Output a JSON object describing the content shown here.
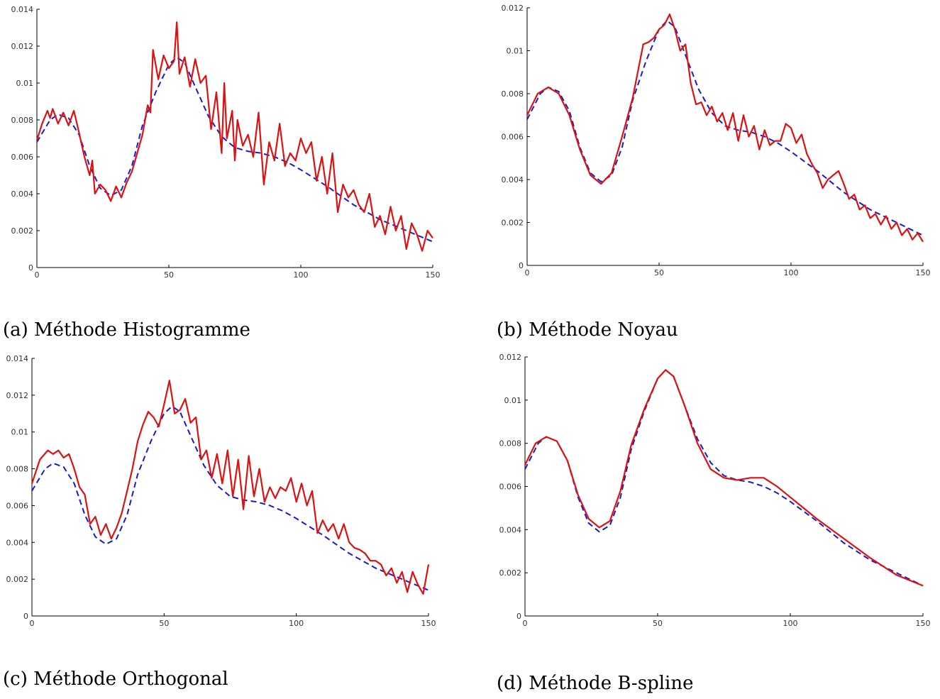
{
  "colors": {
    "estimate": "#dd1111",
    "true_density": "#1a1acc",
    "axis": "#000000"
  },
  "captions": [
    "(a) Méthode Histogramme",
    "(b) Méthode Noyau",
    "(c) Méthode Orthogonal",
    "(d) Méthode B-spline"
  ],
  "chart_data": [
    {
      "type": "line",
      "caption": "(a) Méthode Histogramme",
      "xlim": [
        0,
        150
      ],
      "ylim": [
        0,
        0.014
      ],
      "xticks": [
        0,
        50,
        100,
        150
      ],
      "yticks": [
        0,
        0.002,
        0.004,
        0.006,
        0.008,
        0.01,
        0.012,
        0.014
      ],
      "series": [
        {
          "style": "dashed",
          "color": "#1a1acc",
          "x": [
            0,
            5,
            8,
            12,
            16,
            20,
            24,
            28,
            32,
            36,
            40,
            45,
            50,
            53,
            56,
            60,
            65,
            70,
            75,
            80,
            85,
            90,
            95,
            100,
            110,
            120,
            130,
            140,
            150
          ],
          "y": [
            0.0068,
            0.008,
            0.0083,
            0.0081,
            0.0072,
            0.0055,
            0.0043,
            0.0039,
            0.0042,
            0.0055,
            0.0077,
            0.0095,
            0.011,
            0.0114,
            0.0111,
            0.0098,
            0.0082,
            0.0071,
            0.0065,
            0.0063,
            0.0062,
            0.006,
            0.0057,
            0.0053,
            0.0044,
            0.0034,
            0.0026,
            0.002,
            0.0014
          ]
        },
        {
          "style": "solid",
          "color": "#dd1111",
          "x": [
            0,
            2,
            4,
            5,
            6,
            8,
            10,
            12,
            14,
            16,
            18,
            20,
            21,
            22,
            24,
            26,
            28,
            30,
            32,
            34,
            36,
            38,
            40,
            42,
            43,
            44,
            46,
            48,
            50,
            52,
            53,
            54,
            56,
            58,
            60,
            62,
            64,
            66,
            68,
            70,
            71,
            72,
            74,
            75,
            76,
            78,
            80,
            82,
            84,
            86,
            88,
            90,
            92,
            94,
            96,
            98,
            100,
            102,
            104,
            106,
            108,
            110,
            112,
            114,
            116,
            118,
            120,
            122,
            124,
            126,
            128,
            130,
            132,
            134,
            136,
            138,
            140,
            142,
            144,
            146,
            148,
            150
          ],
          "y": [
            0.0069,
            0.0078,
            0.0085,
            0.0081,
            0.0086,
            0.0078,
            0.0084,
            0.0077,
            0.0085,
            0.0073,
            0.006,
            0.005,
            0.0058,
            0.004,
            0.0045,
            0.0042,
            0.0036,
            0.0044,
            0.0038,
            0.0046,
            0.0052,
            0.0062,
            0.0072,
            0.0088,
            0.0084,
            0.0118,
            0.0102,
            0.0115,
            0.0108,
            0.0112,
            0.0133,
            0.0105,
            0.0114,
            0.0098,
            0.0113,
            0.01,
            0.0104,
            0.0075,
            0.0095,
            0.0062,
            0.01,
            0.007,
            0.0085,
            0.0058,
            0.008,
            0.0066,
            0.0072,
            0.006,
            0.0084,
            0.0045,
            0.0068,
            0.0058,
            0.0078,
            0.0055,
            0.0062,
            0.0058,
            0.007,
            0.0062,
            0.0068,
            0.0047,
            0.006,
            0.004,
            0.0062,
            0.003,
            0.0045,
            0.0038,
            0.0042,
            0.0034,
            0.003,
            0.004,
            0.0022,
            0.0028,
            0.0018,
            0.0033,
            0.002,
            0.0028,
            0.001,
            0.0024,
            0.0018,
            0.0009,
            0.002,
            0.0016
          ]
        }
      ]
    },
    {
      "type": "line",
      "caption": "(b) Méthode Noyau",
      "xlim": [
        0,
        150
      ],
      "ylim": [
        0,
        0.012
      ],
      "xticks": [
        0,
        50,
        100,
        150
      ],
      "yticks": [
        0,
        0.002,
        0.004,
        0.006,
        0.008,
        0.01,
        0.012
      ],
      "series": [
        {
          "style": "dashed",
          "color": "#1a1acc",
          "x": [
            0,
            5,
            8,
            12,
            16,
            20,
            24,
            28,
            32,
            36,
            40,
            45,
            50,
            53,
            56,
            60,
            65,
            70,
            75,
            80,
            85,
            90,
            95,
            100,
            110,
            120,
            130,
            140,
            150
          ],
          "y": [
            0.0068,
            0.008,
            0.0083,
            0.0081,
            0.0072,
            0.0055,
            0.0043,
            0.0039,
            0.0042,
            0.0055,
            0.0077,
            0.0095,
            0.011,
            0.0114,
            0.0111,
            0.0098,
            0.0082,
            0.0071,
            0.0065,
            0.0063,
            0.0062,
            0.006,
            0.0057,
            0.0053,
            0.0044,
            0.0034,
            0.0026,
            0.002,
            0.0014
          ]
        },
        {
          "style": "solid",
          "color": "#dd1111",
          "x": [
            0,
            4,
            8,
            12,
            16,
            20,
            24,
            28,
            32,
            36,
            40,
            44,
            46,
            48,
            50,
            52,
            54,
            56,
            58,
            60,
            62,
            64,
            66,
            68,
            70,
            72,
            74,
            76,
            78,
            80,
            82,
            84,
            86,
            88,
            90,
            92,
            94,
            96,
            98,
            100,
            102,
            104,
            106,
            108,
            110,
            112,
            114,
            116,
            118,
            120,
            122,
            124,
            126,
            128,
            130,
            132,
            134,
            136,
            138,
            140,
            142,
            144,
            146,
            148,
            150
          ],
          "y": [
            0.007,
            0.008,
            0.0083,
            0.008,
            0.007,
            0.0054,
            0.0042,
            0.0038,
            0.0043,
            0.006,
            0.0078,
            0.0103,
            0.0104,
            0.0106,
            0.011,
            0.0112,
            0.0117,
            0.011,
            0.01,
            0.0103,
            0.0085,
            0.0075,
            0.0076,
            0.007,
            0.0074,
            0.0067,
            0.0071,
            0.0063,
            0.0071,
            0.0058,
            0.007,
            0.006,
            0.0065,
            0.0054,
            0.0063,
            0.0056,
            0.0058,
            0.0058,
            0.0066,
            0.0064,
            0.0057,
            0.0061,
            0.0052,
            0.0047,
            0.0043,
            0.0036,
            0.004,
            0.0042,
            0.0044,
            0.0038,
            0.0031,
            0.0033,
            0.0026,
            0.0028,
            0.0022,
            0.0024,
            0.0019,
            0.0023,
            0.0017,
            0.002,
            0.0014,
            0.0017,
            0.0012,
            0.0015,
            0.0011
          ]
        }
      ]
    },
    {
      "type": "line",
      "caption": "(c) Méthode Orthogonal",
      "xlim": [
        0,
        150
      ],
      "ylim": [
        0,
        0.014
      ],
      "xticks": [
        0,
        50,
        100,
        150
      ],
      "yticks": [
        0,
        0.002,
        0.004,
        0.006,
        0.008,
        0.01,
        0.012,
        0.014
      ],
      "series": [
        {
          "style": "dashed",
          "color": "#1a1acc",
          "x": [
            0,
            5,
            8,
            12,
            16,
            20,
            24,
            28,
            32,
            36,
            40,
            45,
            50,
            53,
            56,
            60,
            65,
            70,
            75,
            80,
            85,
            90,
            95,
            100,
            110,
            120,
            130,
            140,
            150
          ],
          "y": [
            0.0068,
            0.008,
            0.0083,
            0.0081,
            0.0072,
            0.0055,
            0.0043,
            0.0039,
            0.0042,
            0.0055,
            0.0077,
            0.0095,
            0.011,
            0.0114,
            0.0111,
            0.0098,
            0.0082,
            0.0071,
            0.0065,
            0.0063,
            0.0062,
            0.006,
            0.0057,
            0.0053,
            0.0044,
            0.0034,
            0.0026,
            0.002,
            0.0014
          ]
        },
        {
          "style": "solid",
          "color": "#dd1111",
          "x": [
            0,
            3,
            6,
            8,
            10,
            12,
            14,
            16,
            18,
            20,
            22,
            24,
            26,
            28,
            30,
            32,
            34,
            36,
            38,
            40,
            42,
            44,
            46,
            48,
            50,
            52,
            54,
            56,
            58,
            60,
            62,
            64,
            66,
            68,
            70,
            72,
            74,
            76,
            78,
            80,
            82,
            84,
            86,
            88,
            90,
            92,
            94,
            96,
            98,
            100,
            102,
            104,
            106,
            108,
            110,
            112,
            114,
            116,
            118,
            120,
            122,
            124,
            126,
            128,
            130,
            132,
            134,
            136,
            138,
            140,
            142,
            144,
            146,
            148,
            150
          ],
          "y": [
            0.0072,
            0.0085,
            0.009,
            0.0088,
            0.009,
            0.0086,
            0.0088,
            0.008,
            0.007,
            0.0066,
            0.005,
            0.0054,
            0.0044,
            0.005,
            0.0042,
            0.0048,
            0.0056,
            0.0068,
            0.008,
            0.0095,
            0.0104,
            0.0111,
            0.0108,
            0.0103,
            0.0115,
            0.0128,
            0.011,
            0.0112,
            0.0118,
            0.0105,
            0.0108,
            0.0085,
            0.009,
            0.0075,
            0.0088,
            0.0072,
            0.009,
            0.0065,
            0.0085,
            0.0058,
            0.0087,
            0.0065,
            0.008,
            0.0062,
            0.007,
            0.0064,
            0.007,
            0.0068,
            0.0075,
            0.0062,
            0.0072,
            0.006,
            0.0068,
            0.0045,
            0.0052,
            0.0046,
            0.005,
            0.0042,
            0.005,
            0.004,
            0.0037,
            0.0036,
            0.0034,
            0.003,
            0.003,
            0.0028,
            0.0022,
            0.0026,
            0.0018,
            0.0024,
            0.0013,
            0.0024,
            0.0017,
            0.0012,
            0.0028
          ]
        }
      ]
    },
    {
      "type": "line",
      "caption": "(d) Méthode B-spline",
      "xlim": [
        0,
        150
      ],
      "ylim": [
        0,
        0.012
      ],
      "xticks": [
        0,
        50,
        100,
        150
      ],
      "yticks": [
        0,
        0.002,
        0.004,
        0.006,
        0.008,
        0.01,
        0.012
      ],
      "series": [
        {
          "style": "dashed",
          "color": "#1a1acc",
          "x": [
            0,
            5,
            8,
            12,
            16,
            20,
            24,
            28,
            32,
            36,
            40,
            45,
            50,
            53,
            56,
            60,
            65,
            70,
            75,
            80,
            85,
            90,
            95,
            100,
            110,
            120,
            130,
            140,
            150
          ],
          "y": [
            0.0068,
            0.008,
            0.0083,
            0.0081,
            0.0072,
            0.0055,
            0.0043,
            0.0039,
            0.0042,
            0.0055,
            0.0077,
            0.0095,
            0.011,
            0.0114,
            0.0111,
            0.0098,
            0.0082,
            0.0071,
            0.0065,
            0.0063,
            0.0062,
            0.006,
            0.0057,
            0.0053,
            0.0044,
            0.0034,
            0.0026,
            0.002,
            0.0014
          ]
        },
        {
          "style": "solid",
          "color": "#dd1111",
          "x": [
            0,
            4,
            8,
            12,
            16,
            20,
            24,
            28,
            32,
            36,
            40,
            45,
            50,
            53,
            56,
            60,
            65,
            70,
            75,
            80,
            85,
            90,
            95,
            100,
            105,
            110,
            120,
            130,
            140,
            150
          ],
          "y": [
            0.007,
            0.008,
            0.0083,
            0.0081,
            0.0072,
            0.0056,
            0.0045,
            0.0041,
            0.0044,
            0.0058,
            0.0079,
            0.0096,
            0.011,
            0.0114,
            0.0111,
            0.0098,
            0.008,
            0.0068,
            0.0064,
            0.0063,
            0.0064,
            0.0064,
            0.006,
            0.0055,
            0.005,
            0.0045,
            0.0036,
            0.0027,
            0.0019,
            0.0014
          ]
        }
      ]
    }
  ]
}
